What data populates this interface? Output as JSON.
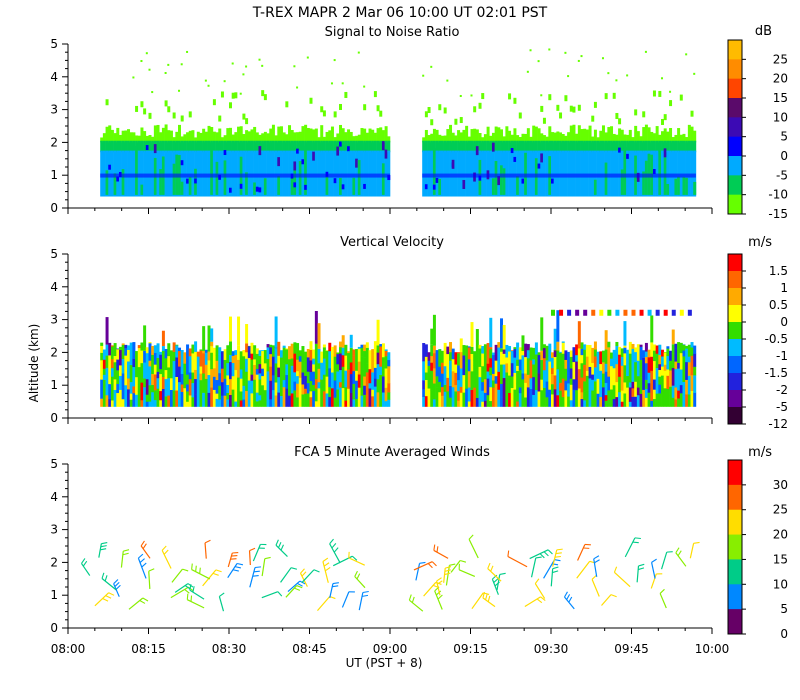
{
  "figure": {
    "title": "T-REX   MAPR   2 Mar 06   10:00 UT   02:01   PST",
    "xlabel": "UT  (PST + 8)",
    "ylabel": "Altitude  (km)"
  },
  "chart_data": [
    {
      "type": "heatmap",
      "title": "Signal to Noise Ratio",
      "units": "dB",
      "x_ticks": [
        "08:00",
        "08:15",
        "08:30",
        "08:45",
        "09:00",
        "09:15",
        "09:30",
        "09:45",
        "10:00"
      ],
      "xlim_minutes": [
        0,
        120
      ],
      "ylim": [
        0,
        5
      ],
      "y_ticks": [
        "0",
        "1",
        "2",
        "3",
        "4",
        "5"
      ],
      "data_gaps_minutes": [
        [
          0,
          6
        ],
        [
          60,
          66
        ],
        [
          117,
          120
        ]
      ],
      "layers": [
        {
          "from": 0.35,
          "to": 1.7,
          "value": -5
        },
        {
          "from": 1.7,
          "to": 2.15,
          "value": -10
        },
        {
          "from": 2.15,
          "to": 2.5,
          "value": -15
        },
        {
          "from": 2.5,
          "to": 4.8,
          "value": -15
        }
      ],
      "colorbar": {
        "labels": [
          "25",
          "20",
          "15",
          "10",
          "5",
          "0",
          "-5",
          "-10",
          "-15"
        ],
        "colors": [
          "#ffbb00",
          "#ff8c00",
          "#ff4500",
          "#5a0a6a",
          "#3c0ab4",
          "#0000ff",
          "#00aaff",
          "#00cc55",
          "#66ff00"
        ]
      }
    },
    {
      "type": "heatmap",
      "title": "Vertical Velocity",
      "units": "m/s",
      "x_ticks": [
        "08:00",
        "08:15",
        "08:30",
        "08:45",
        "09:00",
        "09:15",
        "09:30",
        "09:45",
        "10:00"
      ],
      "xlim_minutes": [
        0,
        120
      ],
      "ylim": [
        0,
        5
      ],
      "y_ticks": [
        "0",
        "1",
        "2",
        "3",
        "4",
        "5"
      ],
      "data_gaps_minutes": [
        [
          0,
          6
        ],
        [
          60,
          66
        ],
        [
          117,
          120
        ]
      ],
      "layers": [
        {
          "from": 0.35,
          "to": 2.2,
          "value": -0.5
        }
      ],
      "colorbar": {
        "labels": [
          "1.5",
          "1",
          "0.5",
          "0",
          "-0.5",
          "-1",
          "-1.5",
          "-2",
          "-5",
          "-12"
        ],
        "colors": [
          "#ff0000",
          "#ff6600",
          "#ffaa00",
          "#ffff00",
          "#33dd00",
          "#00bbff",
          "#0066ff",
          "#2222dd",
          "#660099",
          "#330033"
        ]
      }
    },
    {
      "type": "scatter",
      "title": "FCA 5 Minute Averaged Winds",
      "units": "m/s",
      "x_ticks": [
        "08:00",
        "08:15",
        "08:30",
        "08:45",
        "09:00",
        "09:15",
        "09:30",
        "09:45",
        "10:00"
      ],
      "xlim_minutes": [
        0,
        120
      ],
      "ylim": [
        0,
        5
      ],
      "y_ticks": [
        "0",
        "1",
        "2",
        "3",
        "4",
        "5"
      ],
      "barb_times_minutes": [
        5,
        10,
        15,
        20,
        25,
        30,
        35,
        40,
        45,
        50,
        55,
        65,
        70,
        75,
        80,
        85,
        90,
        95,
        100,
        105,
        110,
        115
      ],
      "barb_heights_km": [
        0.6,
        0.9,
        1.2,
        1.5,
        1.8,
        2.1
      ],
      "colorbar": {
        "labels": [
          "30",
          "25",
          "20",
          "15",
          "10",
          "5",
          "0"
        ],
        "colors": [
          "#ff0000",
          "#ff6600",
          "#ffdd00",
          "#88ee00",
          "#00cc88",
          "#0088ff",
          "#660066"
        ]
      }
    }
  ]
}
